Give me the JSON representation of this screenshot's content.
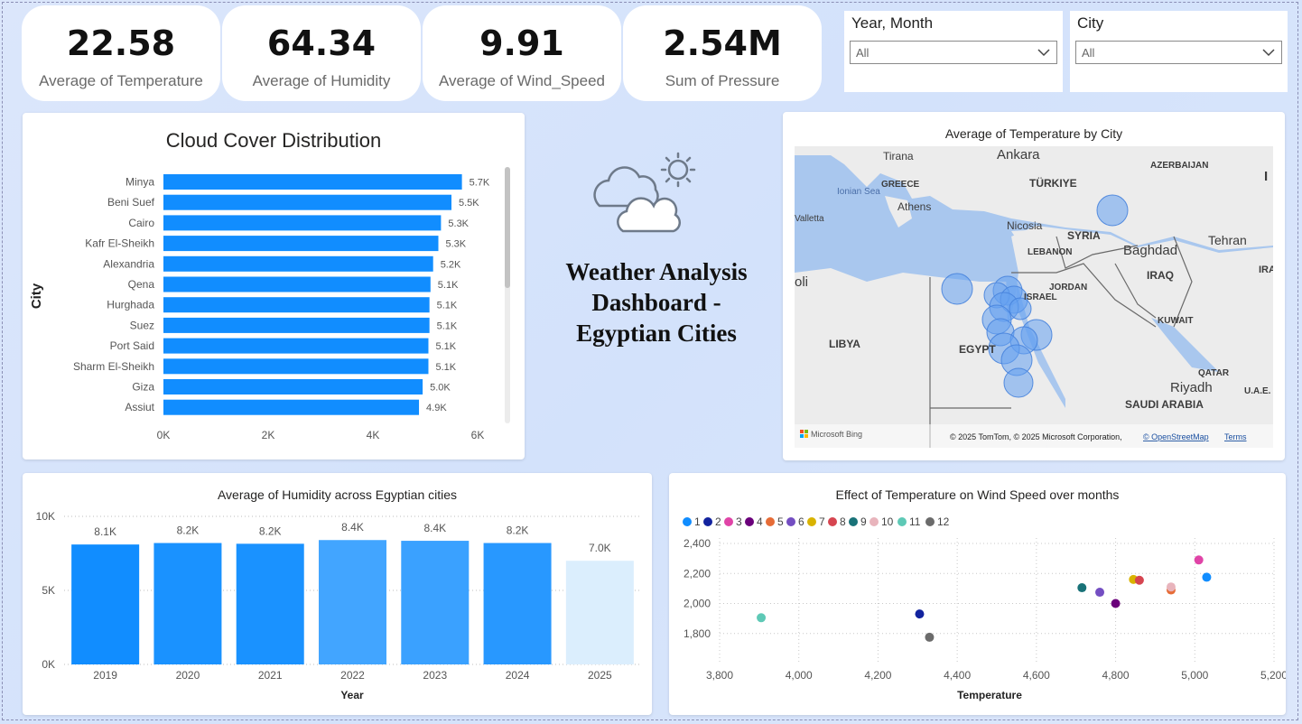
{
  "kpis": [
    {
      "value": "22.58",
      "label": "Average of Temperature"
    },
    {
      "value": "64.34",
      "label": "Average of Humidity"
    },
    {
      "value": "9.91",
      "label": "Average of Wind_Speed"
    },
    {
      "value": "2.54M",
      "label": "Sum of Pressure"
    }
  ],
  "slicers": [
    {
      "title": "Year, Month",
      "value": "All"
    },
    {
      "title": "City",
      "value": "All"
    }
  ],
  "dashboard_title": "Weather Analysis Dashboard - Egyptian Cities",
  "cloud_chart": {
    "title": "Cloud Cover Distribution",
    "ylabel": "City",
    "xticks": [
      "0K",
      "2K",
      "4K",
      "6K"
    ],
    "bar_color": "#118dff"
  },
  "map": {
    "title": "Average of Temperature by City",
    "labels": [
      "Tirana",
      "Ankara",
      "TÜRKIYE",
      "AZERBAIJAN",
      "GREECE",
      "Ionian Sea",
      "Athens",
      "Valletta",
      "Nicosia",
      "SYRIA",
      "LEBANON",
      "Baghdad",
      "Tehran",
      "IRAQ",
      "JORDAN",
      "ISRAEL",
      "KUWAIT",
      "LIBYA",
      "EGYPT",
      "QATAR",
      "Riyadh",
      "SAUDI ARABIA",
      "U.A.E.",
      "IRA",
      "oli",
      "I"
    ],
    "logo": "Microsoft Bing",
    "attribution": "© 2025 TomTom, © 2025 Microsoft Corporation, ",
    "attribution_link": "© OpenStreetMap",
    "terms": "Terms"
  },
  "humidity_chart": {
    "title": "Average of Humidity across Egyptian cities",
    "xlabel": "Year",
    "yticks": [
      "0K",
      "5K",
      "10K"
    ]
  },
  "scatter_chart": {
    "title": "Effect of Temperature on Wind Speed over months",
    "xlabel": "Temperature",
    "yticks": [
      "1,800",
      "2,000",
      "2,200",
      "2,400"
    ],
    "xticks": [
      "3,800",
      "4,000",
      "4,200",
      "4,400",
      "4,600",
      "4,800",
      "5,000",
      "5,200"
    ]
  },
  "chart_data": [
    {
      "type": "bar",
      "orientation": "horizontal",
      "title": "Cloud Cover Distribution",
      "ylabel": "City",
      "xlim": [
        0,
        6000
      ],
      "categories": [
        "Minya",
        "Beni Suef",
        "Cairo",
        "Kafr El-Sheikh",
        "Alexandria",
        "Qena",
        "Hurghada",
        "Suez",
        "Port Said",
        "Sharm El-Sheikh",
        "Giza",
        "Assiut"
      ],
      "values": [
        5700,
        5500,
        5300,
        5250,
        5150,
        5100,
        5080,
        5080,
        5060,
        5060,
        4950,
        4880
      ],
      "data_labels": [
        "5.7K",
        "5.5K",
        "5.3K",
        "5.3K",
        "5.2K",
        "5.1K",
        "5.1K",
        "5.1K",
        "5.1K",
        "5.1K",
        "5.0K",
        "4.9K"
      ]
    },
    {
      "type": "bar",
      "title": "Average of Humidity across Egyptian cities",
      "xlabel": "Year",
      "ylim": [
        0,
        10000
      ],
      "categories": [
        "2019",
        "2020",
        "2021",
        "2022",
        "2023",
        "2024",
        "2025"
      ],
      "values": [
        8100,
        8200,
        8150,
        8400,
        8350,
        8200,
        7000
      ],
      "data_labels": [
        "8.1K",
        "8.2K",
        "8.2K",
        "8.4K",
        "8.4K",
        "8.2K",
        "7.0K"
      ],
      "colors": [
        "#118dff",
        "#1a92ff",
        "#1a92ff",
        "#42a5ff",
        "#3aa1ff",
        "#2898ff",
        "#dbeefd"
      ]
    },
    {
      "type": "scatter",
      "title": "Effect of Temperature on Wind Speed over months",
      "xlabel": "Temperature",
      "xlim": [
        3800,
        5200
      ],
      "ylim": [
        1600,
        2400
      ],
      "legend_position": "top-left",
      "series": [
        {
          "name": "1",
          "color": "#118dff",
          "points": [
            [
              5030,
              2175
            ]
          ]
        },
        {
          "name": "2",
          "color": "#12239e",
          "points": [
            [
              4305,
              1930
            ]
          ]
        },
        {
          "name": "3",
          "color": "#e044a7",
          "points": [
            [
              5010,
              2290
            ]
          ]
        },
        {
          "name": "4",
          "color": "#6b007b",
          "points": [
            [
              4800,
              2000
            ]
          ]
        },
        {
          "name": "5",
          "color": "#e66c37",
          "points": [
            [
              4940,
              2090
            ]
          ]
        },
        {
          "name": "6",
          "color": "#744ec2",
          "points": [
            [
              4760,
              2075
            ]
          ]
        },
        {
          "name": "7",
          "color": "#d9b300",
          "points": [
            [
              4845,
              2160
            ]
          ]
        },
        {
          "name": "8",
          "color": "#d64550",
          "points": [
            [
              4860,
              2155
            ]
          ]
        },
        {
          "name": "9",
          "color": "#197278",
          "points": [
            [
              4715,
              2105
            ]
          ]
        },
        {
          "name": "10",
          "color": "#e8b4bc",
          "points": [
            [
              4940,
              2110
            ]
          ]
        },
        {
          "name": "11",
          "color": "#5ec9b6",
          "points": [
            [
              3905,
              1905
            ]
          ]
        },
        {
          "name": "12",
          "color": "#6b6b6b",
          "points": [
            [
              4330,
              1775
            ]
          ]
        }
      ]
    }
  ]
}
